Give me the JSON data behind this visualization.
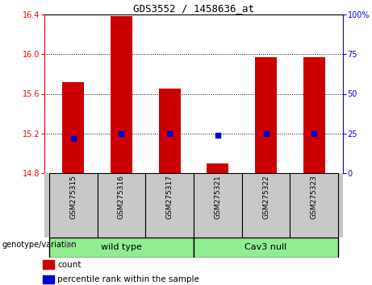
{
  "title": "GDS3552 / 1458636_at",
  "samples": [
    "GSM275315",
    "GSM275316",
    "GSM275317",
    "GSM275321",
    "GSM275322",
    "GSM275323"
  ],
  "count_values": [
    15.72,
    16.38,
    15.65,
    14.9,
    15.97,
    15.97
  ],
  "percentile_values": [
    22,
    25,
    25,
    24,
    25,
    25
  ],
  "ylim_left": [
    14.8,
    16.4
  ],
  "ylim_right": [
    0,
    100
  ],
  "yticks_left": [
    14.8,
    15.2,
    15.6,
    16.0,
    16.4
  ],
  "yticks_right": [
    0,
    25,
    50,
    75,
    100
  ],
  "bar_color": "#CC0000",
  "dot_color": "#0000CC",
  "label_bg_color": "#C8C8C8",
  "group_color": "#90EE90",
  "legend_count_label": "count",
  "legend_percentile_label": "percentile rank within the sample",
  "genotype_label": "genotype/variation",
  "wt_label": "wild type",
  "cav_label": "Cav3 null",
  "bar_width": 0.45,
  "dot_size": 4
}
